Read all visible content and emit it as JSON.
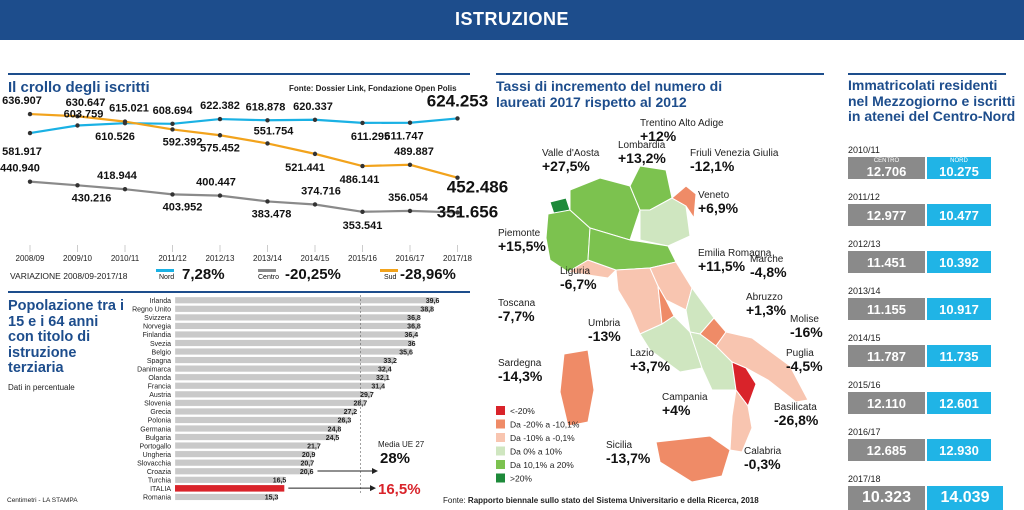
{
  "header": {
    "title": "ISTRUZIONE"
  },
  "colors": {
    "nord": "#1ab1e4",
    "centro": "#8a8a8a",
    "sud": "#f2a31c",
    "banner": "#1d4d8c",
    "italia": "#d9232a"
  },
  "panel1": {
    "title": "Il crollo degli iscritti",
    "source": "Fonte: Dossier Link, Fondazione Open Polis",
    "variation_label": "VARIAZIONE 2008/09-2017/18",
    "legend": [
      {
        "name": "Nord",
        "value": "7,28%"
      },
      {
        "name": "Centro",
        "value": "-20,25%"
      },
      {
        "name": "Sud",
        "value": "-28,96%"
      }
    ]
  },
  "panel2": {
    "title": "Popolazione tra i 15 e i 64 anni con titolo di istruzione terziaria",
    "subtitle": "Dati in percentuale",
    "avg_label": "Media UE 27",
    "avg_value": "28%",
    "italia_value": "16,5%",
    "credit": "Centimetri - LA STAMPA"
  },
  "panel3": {
    "title": "Tassi di incremento del numero di laureati 2017 rispetto al 2012",
    "regions": [
      {
        "name": "Valle d'Aosta",
        "value": "+27,5%"
      },
      {
        "name": "Lombardia",
        "value": "+13,2%"
      },
      {
        "name": "Trentino Alto Adige",
        "value": "+12%"
      },
      {
        "name": "Friuli Venezia Giulia",
        "value": "-12,1%"
      },
      {
        "name": "Veneto",
        "value": "+6,9%"
      },
      {
        "name": "Piemonte",
        "value": "+15,5%"
      },
      {
        "name": "Emilia Romagna",
        "value": "+11,5%"
      },
      {
        "name": "Liguria",
        "value": "-6,7%"
      },
      {
        "name": "Marche",
        "value": "-4,8%"
      },
      {
        "name": "Toscana",
        "value": "-7,7%"
      },
      {
        "name": "Abruzzo",
        "value": "+1,3%"
      },
      {
        "name": "Umbria",
        "value": "-13%"
      },
      {
        "name": "Molise",
        "value": "-16%"
      },
      {
        "name": "Lazio",
        "value": "+3,7%"
      },
      {
        "name": "Puglia",
        "value": "-4,5%"
      },
      {
        "name": "Sardegna",
        "value": "-14,3%"
      },
      {
        "name": "Campania",
        "value": "+4%"
      },
      {
        "name": "Basilicata",
        "value": "-26,8%"
      },
      {
        "name": "Sicilia",
        "value": "-13,7%"
      },
      {
        "name": "Calabria",
        "value": "-0,3%"
      }
    ],
    "legend": [
      {
        "label": "<-20%",
        "color": "#d9232a"
      },
      {
        "label": "Da -20% a -10,1%",
        "color": "#ef8b67"
      },
      {
        "label": "Da -10% a -0,1%",
        "color": "#f8c5b0"
      },
      {
        "label": "Da 0% a 10%",
        "color": "#cfe6c0"
      },
      {
        "label": "Da 10,1% a 20%",
        "color": "#7cc24f"
      },
      {
        "label": ">20%",
        "color": "#1d8a3a"
      }
    ],
    "source_prefix": "Fonte:",
    "source": "Rapporto biennale sullo stato del Sistema Universitario e della Ricerca, 2018"
  },
  "panel4": {
    "title": "Immatricolati residenti nel Mezzogiorno e iscritti in atenei del Centro-Nord",
    "sub_centro": "CENTRO",
    "sub_nord": "NORD",
    "rows": [
      {
        "year": "2010/11",
        "left": "12.706",
        "right": "10.275"
      },
      {
        "year": "2011/12",
        "left": "12.977",
        "right": "10.477"
      },
      {
        "year": "2012/13",
        "left": "11.451",
        "right": "10.392"
      },
      {
        "year": "2013/14",
        "left": "11.155",
        "right": "10.917"
      },
      {
        "year": "2014/15",
        "left": "11.787",
        "right": "11.735"
      },
      {
        "year": "2015/16",
        "left": "12.110",
        "right": "12.601"
      },
      {
        "year": "2016/17",
        "left": "12.685",
        "right": "12.930"
      },
      {
        "year": "2017/18",
        "left": "10.323",
        "right": "14.039"
      }
    ]
  },
  "chart_data": [
    {
      "type": "line",
      "title": "Il crollo degli iscritti",
      "x": [
        "2008/09",
        "2009/10",
        "2010/11",
        "2011/12",
        "2012/13",
        "2013/14",
        "2014/15",
        "2015/16",
        "2016/17",
        "2017/18"
      ],
      "series": [
        {
          "name": "Nord",
          "values": [
            581917,
            603759,
            610526,
            608694,
            622382,
            618878,
            620337,
            611295,
            611747,
            624253
          ],
          "labels": [
            "581.917",
            "603.759",
            "610.526",
            "608.694",
            "622.382",
            "618.878",
            "620.337",
            "611.295",
            "611.747",
            "624.253"
          ]
        },
        {
          "name": "Sud",
          "values": [
            636907,
            630647,
            615021,
            592392,
            575452,
            551754,
            521441,
            486141,
            489887,
            452486
          ],
          "labels": [
            "636.907",
            "630.647",
            "615.021",
            "592.392",
            "575.452",
            "551.754",
            "521.441",
            "486.141",
            "489.887",
            "452.486"
          ]
        },
        {
          "name": "Centro",
          "values": [
            440940,
            430216,
            418944,
            403952,
            400447,
            383478,
            374716,
            353541,
            356054,
            351656
          ],
          "labels": [
            "440.940",
            "430.216",
            "418.944",
            "403.952",
            "400.447",
            "383.478",
            "374.716",
            "353.541",
            "356.054",
            "351.656"
          ]
        }
      ]
    },
    {
      "type": "bar",
      "title": "Popolazione tra i 15 e i 64 anni con titolo di istruzione terziaria",
      "categories": [
        "Irlanda",
        "Regno Unito",
        "Svizzera",
        "Norvegia",
        "Finlandia",
        "Svezia",
        "Belgio",
        "Spagna",
        "Danimarca",
        "Olanda",
        "Francia",
        "Austria",
        "Slovenia",
        "Grecia",
        "Polonia",
        "Germania",
        "Bulgaria",
        "Portogallo",
        "Ungheria",
        "Slovacchia",
        "Croazia",
        "Turchia",
        "ITALIA",
        "Romania"
      ],
      "values": [
        39.6,
        38.8,
        36.8,
        36.8,
        36.4,
        36,
        35.6,
        33.2,
        32.4,
        32.1,
        31.4,
        29.7,
        28.7,
        27.2,
        26.3,
        24.8,
        24.5,
        21.7,
        20.9,
        20.7,
        20.6,
        16.5,
        16.5,
        15.3
      ],
      "labels": [
        "39,6",
        "38,8",
        "36,8",
        "36,8",
        "36,4",
        "36",
        "35,6",
        "33,2",
        "32,4",
        "32,1",
        "31,4",
        "29,7",
        "28,7",
        "27,2",
        "26,3",
        "24,8",
        "24,5",
        "21,7",
        "20,9",
        "20,7",
        "20,6",
        "16,5",
        "",
        "15,3"
      ],
      "xlim": [
        0,
        40
      ]
    }
  ]
}
